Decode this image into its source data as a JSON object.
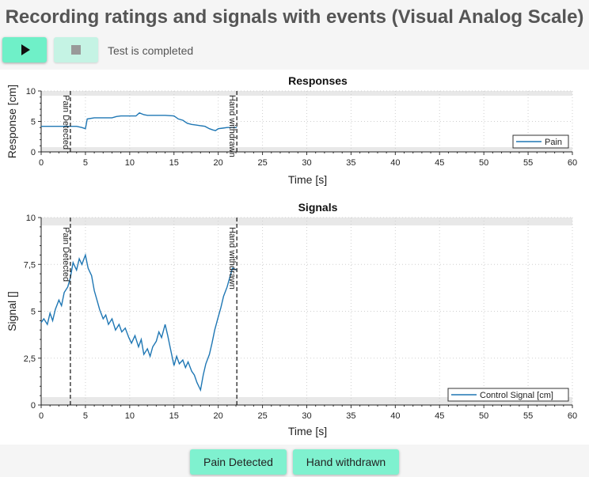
{
  "header": {
    "title": "Recording ratings and signals with events (Visual Analog Scale)"
  },
  "toolbar": {
    "status": "Test is completed"
  },
  "icons": {
    "play": "play-icon",
    "stop": "stop-icon"
  },
  "events": {
    "button1": "Pain Detected",
    "button2": "Hand withdrawn"
  },
  "chart_data": [
    {
      "type": "line",
      "title": "Responses",
      "xlabel": "Time [s]",
      "ylabel": "Response [cm]",
      "xlim": [
        0,
        60
      ],
      "ylim": [
        0,
        10
      ],
      "x_ticks": [
        "0",
        "5",
        "10",
        "15",
        "20",
        "25",
        "30",
        "35",
        "40",
        "45",
        "50",
        "55",
        "60"
      ],
      "y_ticks": [
        "0",
        "5",
        "10"
      ],
      "grid": true,
      "legend_position": "bottom-right",
      "events": [
        {
          "label": "Pain Detected",
          "x": 3.3
        },
        {
          "label": "Hand withdrawn",
          "x": 22.1
        }
      ],
      "series": [
        {
          "name": "Pain",
          "color": "#1f77b4",
          "x": [
            0,
            1,
            2,
            3,
            3.3,
            4,
            4.6,
            5,
            5.2,
            6,
            7,
            8,
            8.5,
            9,
            10,
            10.7,
            11.1,
            11.6,
            12,
            13,
            14,
            15,
            15.5,
            16,
            16.5,
            17,
            17.5,
            18,
            18.5,
            19,
            19.4,
            19.7,
            20,
            20.5,
            21,
            21.5,
            22,
            22.1
          ],
          "y": [
            4.2,
            4.2,
            4.2,
            4.2,
            4.2,
            4.2,
            4.0,
            3.8,
            5.4,
            5.6,
            5.6,
            5.6,
            5.8,
            5.9,
            5.9,
            5.9,
            6.4,
            6.1,
            6.0,
            6.0,
            6.0,
            5.9,
            5.4,
            5.2,
            4.7,
            4.5,
            4.4,
            4.3,
            4.2,
            3.8,
            3.6,
            3.5,
            3.8,
            3.9,
            4.0,
            4.0,
            4.0,
            4.0
          ]
        }
      ]
    },
    {
      "type": "line",
      "title": "Signals",
      "xlabel": "Time [s]",
      "ylabel": "Signal []",
      "xlim": [
        0,
        60
      ],
      "ylim": [
        0,
        10
      ],
      "x_ticks": [
        "0",
        "5",
        "10",
        "15",
        "20",
        "25",
        "30",
        "35",
        "40",
        "45",
        "50",
        "55",
        "60"
      ],
      "y_ticks": [
        "0",
        "2,5",
        "5",
        "7,5",
        "10"
      ],
      "grid": true,
      "legend_position": "bottom-right",
      "events": [
        {
          "label": "Pain Detected",
          "x": 3.3
        },
        {
          "label": "Hand withdrawn",
          "x": 22.1
        }
      ],
      "series": [
        {
          "name": "Control Signal [cm]",
          "color": "#1f77b4",
          "x": [
            0,
            0.3,
            0.7,
            1.0,
            1.3,
            1.6,
            2.0,
            2.3,
            2.6,
            3.0,
            3.3,
            3.6,
            4.0,
            4.3,
            4.6,
            5.0,
            5.3,
            5.7,
            6.0,
            6.3,
            6.6,
            7.0,
            7.3,
            7.6,
            8.0,
            8.4,
            8.8,
            9.1,
            9.5,
            9.9,
            10.2,
            10.6,
            11.0,
            11.3,
            11.6,
            12.0,
            12.3,
            12.6,
            13.0,
            13.3,
            13.6,
            14.0,
            14.3,
            14.6,
            15.0,
            15.3,
            15.6,
            16.0,
            16.3,
            16.6,
            17.0,
            17.3,
            17.6,
            18.0,
            18.3,
            18.6,
            19.0,
            19.3,
            19.6,
            20.0,
            20.3,
            20.6,
            21.0,
            21.3,
            21.6,
            22.1
          ],
          "y": [
            4.4,
            4.6,
            4.3,
            4.9,
            4.5,
            5.1,
            5.6,
            5.3,
            6.0,
            6.3,
            6.8,
            7.6,
            7.2,
            7.8,
            7.5,
            8.0,
            7.3,
            6.9,
            6.1,
            5.6,
            5.1,
            4.6,
            4.8,
            4.3,
            4.6,
            4.0,
            4.3,
            3.9,
            4.1,
            3.6,
            3.3,
            3.7,
            3.1,
            3.5,
            2.7,
            3.0,
            2.6,
            3.1,
            3.4,
            3.9,
            3.6,
            4.3,
            3.7,
            3.0,
            2.1,
            2.6,
            2.2,
            2.4,
            2.0,
            2.3,
            1.8,
            1.6,
            1.2,
            0.8,
            1.6,
            2.2,
            2.7,
            3.3,
            4.0,
            4.7,
            5.2,
            5.8,
            6.3,
            6.8,
            7.3,
            7.2
          ]
        }
      ]
    }
  ]
}
